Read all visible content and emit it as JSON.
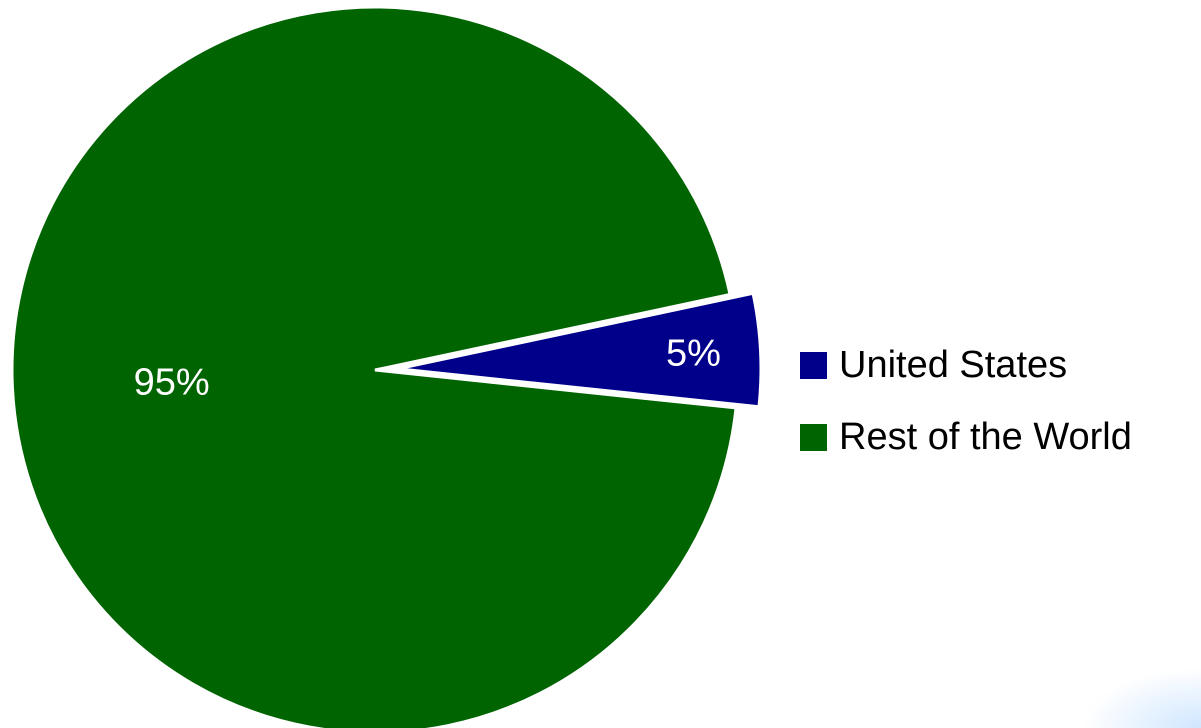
{
  "chart_data": {
    "type": "pie",
    "title": "",
    "slices": [
      {
        "name": "United States",
        "value": 5,
        "label": "5%",
        "color": "#00008b",
        "exploded": true
      },
      {
        "name": "Rest of the World",
        "value": 95,
        "label": "95%",
        "color": "#006400",
        "exploded": false
      }
    ],
    "legend_position": "right"
  },
  "legend": {
    "items": [
      {
        "label": "United States",
        "color": "#00008b"
      },
      {
        "label": "Rest of the World",
        "color": "#006400"
      }
    ]
  }
}
